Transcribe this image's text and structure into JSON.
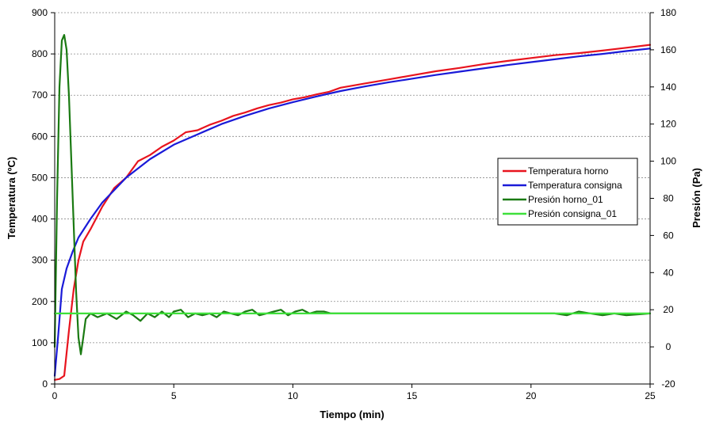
{
  "chart_data": {
    "type": "line",
    "title": "",
    "xlabel": "Tiempo (min)",
    "ylabel_left": "Temperatura (ºC)",
    "ylabel_right": "Presión (Pa)",
    "xlim": [
      0,
      25
    ],
    "ylim_left": [
      0,
      900
    ],
    "ylim_right": [
      -20,
      180
    ],
    "x_ticks": [
      "0",
      "5",
      "10",
      "15",
      "20",
      "25"
    ],
    "y_left_ticks": [
      "0",
      "100",
      "200",
      "300",
      "400",
      "500",
      "600",
      "700",
      "800",
      "900"
    ],
    "y_right_ticks": [
      "-20",
      "0",
      "20",
      "40",
      "60",
      "80",
      "100",
      "120",
      "140",
      "160",
      "180"
    ],
    "grid": "horizontal-dashed",
    "legend_position": "right",
    "series": [
      {
        "name": "Temperatura horno",
        "axis": "left",
        "color": "#e8141e",
        "x": [
          0,
          0.2,
          0.4,
          0.6,
          0.8,
          1.0,
          1.2,
          1.5,
          2.0,
          2.5,
          3.0,
          3.5,
          4.0,
          4.5,
          5.0,
          5.5,
          6.0,
          6.5,
          7.0,
          7.5,
          8.0,
          8.5,
          9.0,
          9.5,
          10.0,
          10.5,
          11.0,
          11.5,
          12.0,
          13.0,
          14.0,
          15.0,
          16.0,
          17.0,
          18.0,
          19.0,
          20.0,
          21.0,
          22.0,
          23.0,
          24.0,
          25.0
        ],
        "y": [
          10,
          12,
          20,
          130,
          230,
          300,
          345,
          375,
          430,
          475,
          500,
          540,
          555,
          575,
          590,
          610,
          615,
          628,
          638,
          650,
          658,
          668,
          676,
          682,
          690,
          695,
          702,
          708,
          718,
          728,
          738,
          748,
          758,
          766,
          775,
          783,
          790,
          797,
          802,
          808,
          815,
          822
        ]
      },
      {
        "name": "Temperatura consigna",
        "axis": "left",
        "color": "#1a1ad8",
        "x": [
          0,
          0.15,
          0.3,
          0.5,
          0.75,
          1.0,
          1.5,
          2.0,
          2.5,
          3.0,
          4.0,
          5.0,
          6.0,
          7.0,
          8.0,
          9.0,
          10.0,
          11.0,
          12.0,
          13.0,
          14.0,
          15.0,
          16.0,
          17.0,
          18.0,
          19.0,
          20.0,
          21.0,
          22.0,
          23.0,
          24.0,
          25.0
        ],
        "y": [
          20,
          120,
          230,
          280,
          320,
          355,
          400,
          440,
          470,
          500,
          545,
          580,
          605,
          630,
          650,
          668,
          683,
          697,
          710,
          721,
          731,
          740,
          749,
          757,
          765,
          773,
          780,
          787,
          794,
          800,
          807,
          813
        ]
      },
      {
        "name": "Presión horno_01",
        "axis": "right",
        "color": "#1a7a12",
        "x": [
          0,
          0.1,
          0.2,
          0.3,
          0.4,
          0.5,
          0.6,
          0.7,
          0.8,
          0.9,
          1.0,
          1.1,
          1.2,
          1.3,
          1.5,
          1.8,
          2.2,
          2.6,
          3.0,
          3.3,
          3.6,
          3.9,
          4.2,
          4.5,
          4.8,
          5.0,
          5.3,
          5.6,
          5.9,
          6.2,
          6.5,
          6.8,
          7.1,
          7.4,
          7.7,
          8.0,
          8.3,
          8.6,
          8.9,
          9.2,
          9.5,
          9.8,
          10.1,
          10.4,
          10.7,
          11.0,
          11.3,
          11.6,
          12.0,
          13.0,
          14.0,
          15.0,
          16.0,
          17.0,
          18.0,
          19.0,
          20.0,
          20.5,
          21.0,
          21.5,
          22.0,
          22.5,
          23.0,
          23.5,
          24.0,
          25.0
        ],
        "y": [
          0,
          80,
          140,
          165,
          168,
          160,
          135,
          100,
          65,
          30,
          5,
          -4,
          5,
          15,
          18,
          16,
          18,
          15,
          19,
          17,
          14,
          18,
          16,
          19,
          16,
          19,
          20,
          16,
          18,
          17,
          18,
          16,
          19,
          18,
          17,
          19,
          20,
          17,
          18,
          19,
          20,
          17,
          19,
          20,
          18,
          19,
          19,
          18,
          18,
          18,
          18,
          18,
          18,
          18,
          18,
          18,
          18,
          18,
          18,
          17,
          19,
          18,
          17,
          18,
          17,
          18
        ]
      },
      {
        "name": "Presión consigna_01",
        "axis": "right",
        "color": "#3ee03a",
        "x": [
          0,
          25
        ],
        "y": [
          18,
          18
        ]
      }
    ]
  }
}
